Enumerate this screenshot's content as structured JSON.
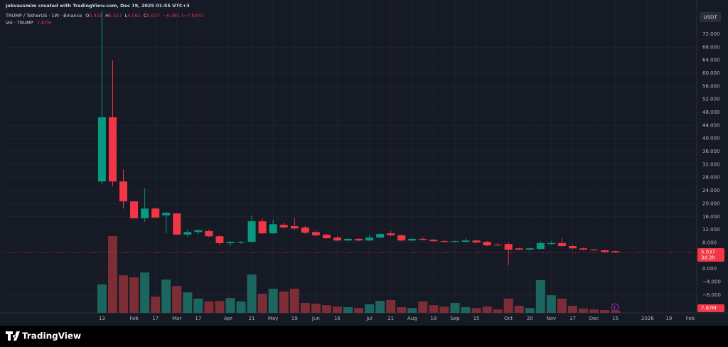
{
  "header": {
    "author_line": "jobvassmim created with TradingView.com, Dec 19, 2025 01:55 UTC+3",
    "symbol": "TRUMP / TetherUS · 1W · Binance",
    "ohlc_labels": [
      "O",
      "H",
      "L",
      "C"
    ],
    "change": "−0.381 (−7.03%)",
    "volume_title": "Vol · TRUMP",
    "volume_value": "7.87M"
  },
  "footer": {
    "logo": "TradingView"
  },
  "chart_data": {
    "type": "candlestick",
    "currency": "USDT",
    "countdown": "3d 2h",
    "up_color": "#089981",
    "down_color": "#f23645",
    "volume_up_color": "#1d6660",
    "volume_down_color": "#7c2d35",
    "grid": true,
    "xlim": [
      -9.2,
      55.6
    ],
    "xticks": [
      {
        "value": 0,
        "label": "13"
      },
      {
        "value": 3,
        "label": "Feb"
      },
      {
        "value": 5,
        "label": "17"
      },
      {
        "value": 7,
        "label": "Mar"
      },
      {
        "value": 9,
        "label": "17"
      },
      {
        "value": 11.8,
        "label": "Apr"
      },
      {
        "value": 14,
        "label": "21"
      },
      {
        "value": 16,
        "label": "May"
      },
      {
        "value": 18,
        "label": "19"
      },
      {
        "value": 20,
        "label": "Jun"
      },
      {
        "value": 22,
        "label": "16"
      },
      {
        "value": 25,
        "label": "Jul"
      },
      {
        "value": 27,
        "label": "21"
      },
      {
        "value": 29,
        "label": "Aug"
      },
      {
        "value": 31,
        "label": "18"
      },
      {
        "value": 33,
        "label": "Sep"
      },
      {
        "value": 35,
        "label": "15"
      },
      {
        "value": 38,
        "label": "Oct"
      },
      {
        "value": 40,
        "label": "20"
      },
      {
        "value": 42,
        "label": "Nov"
      },
      {
        "value": 44,
        "label": "17"
      },
      {
        "value": 46,
        "label": "Dec"
      },
      {
        "value": 48,
        "label": "15"
      },
      {
        "value": 51,
        "label": "2026"
      },
      {
        "value": 53,
        "label": "19"
      },
      {
        "value": 55,
        "label": "Feb"
      }
    ],
    "ylim": [
      -13.5,
      79.2
    ],
    "yticks": [
      {
        "value": 72,
        "label": "72.000"
      },
      {
        "value": 68,
        "label": "68.000"
      },
      {
        "value": 64,
        "label": "64.000"
      },
      {
        "value": 60,
        "label": "60.000"
      },
      {
        "value": 56,
        "label": "56.000"
      },
      {
        "value": 52,
        "label": "52.000"
      },
      {
        "value": 48,
        "label": "48.000"
      },
      {
        "value": 44,
        "label": "44.000"
      },
      {
        "value": 40,
        "label": "40.000"
      },
      {
        "value": 36,
        "label": "36.000"
      },
      {
        "value": 32,
        "label": "32.000"
      },
      {
        "value": 28,
        "label": "28.000"
      },
      {
        "value": 24,
        "label": "24.000"
      },
      {
        "value": 20,
        "label": "20.000"
      },
      {
        "value": 16,
        "label": "16.000"
      },
      {
        "value": 12,
        "label": "12.000"
      },
      {
        "value": 8,
        "label": "8.000"
      },
      {
        "value": 0,
        "label": "0.000"
      },
      {
        "value": -4,
        "label": "−4.000"
      },
      {
        "value": -8,
        "label": "−8.000"
      }
    ],
    "open": [
      26.8,
      46.5,
      26.8,
      20.7,
      15.5,
      18.5,
      16.4,
      17.0,
      10.5,
      11.3,
      11.6,
      10.0,
      7.9,
      8.1,
      8.3,
      14.6,
      10.9,
      13.5,
      13.1,
      12.7,
      11.3,
      10.5,
      9.6,
      8.7,
      9.2,
      8.7,
      9.6,
      10.9,
      10.3,
      8.7,
      9.2,
      8.9,
      8.5,
      8.3,
      8.3,
      8.7,
      8.3,
      7.4,
      7.6,
      6.3,
      5.9,
      6.1,
      7.6,
      7.9,
      7.0,
      6.3,
      5.9,
      5.7,
      5.419
    ],
    "high": [
      79,
      63.9,
      30.5,
      20.7,
      24.7,
      18.8,
      17.5,
      17.0,
      12.0,
      12.2,
      12.0,
      10.3,
      8.5,
      8.5,
      16.4,
      15.5,
      15.1,
      14.2,
      15.7,
      13.1,
      11.6,
      10.7,
      10.0,
      9.4,
      9.4,
      10.3,
      10.9,
      11.6,
      10.5,
      9.4,
      9.6,
      9.2,
      8.9,
      8.7,
      9.4,
      8.9,
      8.5,
      7.9,
      8.1,
      6.5,
      6.5,
      8.5,
      8.5,
      9.4,
      7.2,
      6.5,
      6.1,
      5.9,
      5.517
    ],
    "low": [
      26.0,
      25.3,
      18.5,
      15.5,
      14.4,
      15.7,
      10.9,
      10.5,
      9.8,
      10.7,
      9.6,
      7.4,
      7.0,
      7.6,
      8.1,
      10.7,
      10.7,
      12.4,
      12.0,
      10.7,
      10.0,
      9.2,
      8.5,
      8.5,
      8.5,
      8.5,
      9.4,
      10.0,
      8.5,
      8.5,
      8.7,
      8.3,
      8.1,
      8.1,
      8.1,
      7.9,
      7.0,
      7.0,
      1.1,
      5.7,
      5.7,
      5.9,
      7.4,
      6.8,
      6.1,
      5.7,
      5.5,
      5.0,
      4.961
    ],
    "close": [
      46.5,
      26.8,
      20.7,
      15.5,
      18.5,
      15.7,
      17.2,
      10.5,
      11.3,
      11.8,
      10.0,
      7.9,
      8.3,
      8.3,
      14.6,
      10.9,
      13.7,
      12.7,
      12.4,
      11.1,
      10.3,
      9.4,
      8.7,
      9.2,
      8.7,
      9.6,
      10.7,
      10.3,
      8.7,
      9.2,
      8.9,
      8.5,
      8.3,
      8.5,
      8.7,
      8.1,
      7.2,
      7.2,
      5.9,
      5.9,
      6.3,
      7.9,
      7.9,
      7.0,
      6.3,
      5.9,
      5.7,
      5.2,
      5.037
    ],
    "vlim": [
      0,
      300
    ],
    "volume": [
      100,
      270,
      132,
      125,
      142,
      57,
      117,
      95,
      72,
      50,
      40,
      42,
      52,
      40,
      135,
      67,
      85,
      75,
      85,
      35,
      32,
      27,
      22,
      20,
      17,
      30,
      42,
      45,
      20,
      17,
      40,
      27,
      22,
      35,
      20,
      17,
      22,
      12,
      50,
      25,
      17,
      115,
      62,
      50,
      25,
      15,
      12,
      10,
      7.87
    ]
  }
}
